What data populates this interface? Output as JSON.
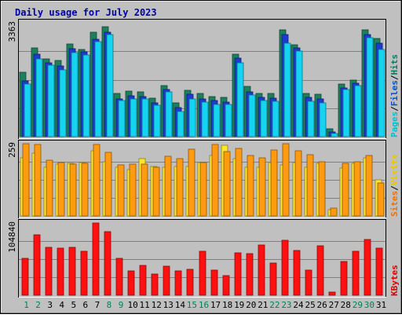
{
  "chart_data": {
    "type": "bar",
    "title": "Daily usage for July 2023",
    "categories": [
      "1",
      "2",
      "3",
      "4",
      "5",
      "6",
      "7",
      "8",
      "9",
      "10",
      "11",
      "12",
      "13",
      "14",
      "15",
      "16",
      "17",
      "18",
      "19",
      "20",
      "21",
      "22",
      "23",
      "24",
      "25",
      "26",
      "27",
      "28",
      "29",
      "30",
      "31"
    ],
    "weekend_days": [
      "1",
      "2",
      "8",
      "9",
      "15",
      "16",
      "22",
      "23",
      "29",
      "30"
    ],
    "panels": [
      {
        "ymax_label": "3363",
        "ylim": [
          0,
          3363
        ],
        "legend": [
          {
            "text": "Pages",
            "color": "#00c0d0"
          },
          {
            "text": "/",
            "color": "#000000"
          },
          {
            "text": "Files",
            "color": "#0050d0"
          },
          {
            "text": "/",
            "color": "#000000"
          },
          {
            "text": "Hits",
            "color": "#008060"
          }
        ],
        "series": [
          {
            "name": "Hits",
            "color": "#1e7f5c",
            "values": [
              1810,
              2532,
              2211,
              2160,
              2647,
              2489,
              2989,
              3152,
              1186,
              1243,
              1237,
              1053,
              1425,
              904,
              1282,
              1179,
              1093,
              1072,
              2354,
              1396,
              1182,
              1176,
              3062,
              2613,
              1187,
              1162,
              143,
              1470,
              1577,
              3059,
              2811
            ]
          },
          {
            "name": "Files",
            "color": "#1c3ccf",
            "values": [
              1600,
              2378,
              2140,
              2044,
              2552,
              2450,
              2837,
              3040,
              1076,
              1158,
              1130,
              946,
              1341,
              803,
              1197,
              1062,
              1016,
              976,
              2283,
              1272,
              1102,
              1089,
              2959,
              2563,
              1102,
              1058,
              100,
              1391,
              1524,
              2978,
              2714
            ]
          },
          {
            "name": "Pages",
            "color": "#14d4f2",
            "values": [
              1550,
              2300,
              2111,
              1963,
              2493,
              2408,
              2811,
              3022,
              1067,
              1123,
              1103,
              919,
              1313,
              745,
              1119,
              1022,
              957,
              955,
              2184,
              1225,
              1067,
              1048,
              2763,
              2537,
              1033,
              990,
              98,
              1391,
              1508,
              2931,
              2564
            ]
          }
        ]
      },
      {
        "ymax_label": "259",
        "ylim": [
          0,
          259
        ],
        "legend": [
          {
            "text": "Sites",
            "color": "#f07000"
          },
          {
            "text": "/",
            "color": "#000000"
          },
          {
            "text": "Visits",
            "color": "#e8c800"
          }
        ],
        "series": [
          {
            "name": "Visits",
            "color": "#ffe62e",
            "values": [
              202,
              220,
              170,
              181,
              184,
              186,
              227,
              190,
              170,
              160,
              200,
              171,
              168,
              171,
              172,
              187,
              210,
              247,
              200,
              170,
              168,
              185,
              176,
              185,
              170,
              184,
              17,
              167,
              184,
              202,
              124
            ]
          },
          {
            "name": "Sites",
            "color": "#ff9a11",
            "values": [
              260,
              257,
              200,
              191,
              187,
              190,
              257,
              227,
              182,
              185,
              187,
              174,
              214,
              206,
              240,
              191,
              257,
              232,
              241,
              217,
              207,
              237,
              258,
              234,
              219,
              193,
              27,
              189,
              195,
              216,
              119
            ]
          }
        ]
      },
      {
        "ymax_label": "104840",
        "ylim": [
          0,
          104840
        ],
        "legend": [
          {
            "text": "KBytes",
            "color": "#e00000"
          }
        ],
        "series": [
          {
            "name": "KBytes",
            "color": "#ff1010",
            "values": [
              53000,
              88000,
              70000,
              68000,
              70000,
              64000,
              104840,
              92000,
              54000,
              35000,
              43000,
              31000,
              42000,
              35000,
              38000,
              64000,
              36000,
              29000,
              62000,
              60000,
              73000,
              47000,
              80000,
              65000,
              36000,
              72000,
              4000,
              49000,
              64000,
              81000,
              68000
            ]
          }
        ]
      }
    ]
  }
}
